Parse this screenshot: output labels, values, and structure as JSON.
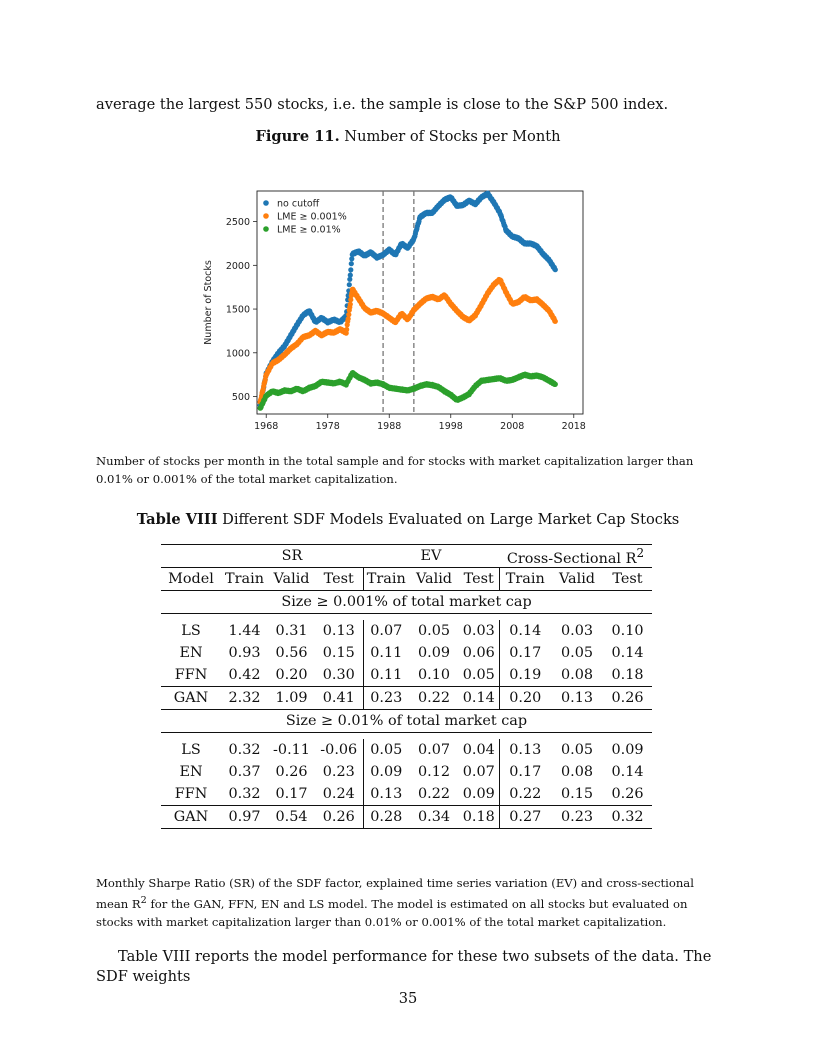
{
  "intro_text": "average the largest 550 stocks, i.e. the sample is close to the S&P 500 index.",
  "figure": {
    "label": "Figure 11.",
    "title": "Number of Stocks per Month",
    "caption": "Number of stocks per month in the total sample and for stocks with market capitalization larger than 0.01% or 0.001% of the total market capitalization."
  },
  "chart_data": {
    "type": "scatter",
    "ylabel": "Number of Stocks",
    "xlabel": "",
    "x_ticks": [
      1968,
      1978,
      1988,
      1998,
      2008,
      2018
    ],
    "y_ticks": [
      500,
      1000,
      1500,
      2000,
      2500
    ],
    "xlim": [
      1966.5,
      2019.5
    ],
    "ylim": [
      300,
      2850
    ],
    "vlines": [
      1987.0,
      1992.0
    ],
    "legend_position": "top-left",
    "series": [
      {
        "name": "no cutoff",
        "color": "#1f77b4",
        "points": [
          [
            1967,
            400
          ],
          [
            1968,
            760
          ],
          [
            1969,
            900
          ],
          [
            1970,
            1000
          ],
          [
            1971,
            1080
          ],
          [
            1972,
            1200
          ],
          [
            1973,
            1320
          ],
          [
            1974,
            1430
          ],
          [
            1975,
            1480
          ],
          [
            1976,
            1350
          ],
          [
            1977,
            1400
          ],
          [
            1978,
            1350
          ],
          [
            1979,
            1380
          ],
          [
            1980,
            1350
          ],
          [
            1981,
            1420
          ],
          [
            1982,
            2130
          ],
          [
            1983,
            2160
          ],
          [
            1984,
            2110
          ],
          [
            1985,
            2150
          ],
          [
            1986,
            2090
          ],
          [
            1987,
            2120
          ],
          [
            1988,
            2180
          ],
          [
            1989,
            2120
          ],
          [
            1990,
            2250
          ],
          [
            1991,
            2200
          ],
          [
            1992,
            2300
          ],
          [
            1993,
            2550
          ],
          [
            1994,
            2600
          ],
          [
            1995,
            2600
          ],
          [
            1996,
            2680
          ],
          [
            1997,
            2750
          ],
          [
            1998,
            2780
          ],
          [
            1999,
            2680
          ],
          [
            2000,
            2690
          ],
          [
            2001,
            2740
          ],
          [
            2002,
            2700
          ],
          [
            2003,
            2780
          ],
          [
            2004,
            2820
          ],
          [
            2005,
            2720
          ],
          [
            2006,
            2600
          ],
          [
            2007,
            2400
          ],
          [
            2008,
            2330
          ],
          [
            2009,
            2310
          ],
          [
            2010,
            2250
          ],
          [
            2011,
            2250
          ],
          [
            2012,
            2220
          ],
          [
            2013,
            2130
          ],
          [
            2014,
            2060
          ],
          [
            2015,
            1950
          ]
        ]
      },
      {
        "name": "LME  ≥ 0.001%",
        "color": "#ff7f0e",
        "points": [
          [
            1967,
            430
          ],
          [
            1968,
            750
          ],
          [
            1969,
            880
          ],
          [
            1970,
            920
          ],
          [
            1971,
            980
          ],
          [
            1972,
            1050
          ],
          [
            1973,
            1100
          ],
          [
            1974,
            1180
          ],
          [
            1975,
            1200
          ],
          [
            1976,
            1250
          ],
          [
            1977,
            1200
          ],
          [
            1978,
            1240
          ],
          [
            1979,
            1230
          ],
          [
            1980,
            1270
          ],
          [
            1981,
            1230
          ],
          [
            1982,
            1730
          ],
          [
            1983,
            1620
          ],
          [
            1984,
            1510
          ],
          [
            1985,
            1460
          ],
          [
            1986,
            1480
          ],
          [
            1987,
            1450
          ],
          [
            1988,
            1400
          ],
          [
            1989,
            1350
          ],
          [
            1990,
            1450
          ],
          [
            1991,
            1380
          ],
          [
            1992,
            1490
          ],
          [
            1993,
            1560
          ],
          [
            1994,
            1620
          ],
          [
            1995,
            1640
          ],
          [
            1996,
            1610
          ],
          [
            1997,
            1660
          ],
          [
            1998,
            1560
          ],
          [
            1999,
            1480
          ],
          [
            2000,
            1410
          ],
          [
            2001,
            1370
          ],
          [
            2002,
            1430
          ],
          [
            2003,
            1550
          ],
          [
            2004,
            1680
          ],
          [
            2005,
            1780
          ],
          [
            2006,
            1840
          ],
          [
            2007,
            1690
          ],
          [
            2008,
            1560
          ],
          [
            2009,
            1580
          ],
          [
            2010,
            1640
          ],
          [
            2011,
            1600
          ],
          [
            2012,
            1610
          ],
          [
            2013,
            1550
          ],
          [
            2014,
            1480
          ],
          [
            2015,
            1360
          ]
        ]
      },
      {
        "name": "LME  ≥ 0.01%",
        "color": "#2ca02c",
        "points": [
          [
            1967,
            360
          ],
          [
            1968,
            510
          ],
          [
            1969,
            560
          ],
          [
            1970,
            540
          ],
          [
            1971,
            570
          ],
          [
            1972,
            560
          ],
          [
            1973,
            590
          ],
          [
            1974,
            560
          ],
          [
            1975,
            600
          ],
          [
            1976,
            620
          ],
          [
            1977,
            670
          ],
          [
            1978,
            660
          ],
          [
            1979,
            650
          ],
          [
            1980,
            670
          ],
          [
            1981,
            640
          ],
          [
            1982,
            770
          ],
          [
            1983,
            720
          ],
          [
            1984,
            690
          ],
          [
            1985,
            650
          ],
          [
            1986,
            660
          ],
          [
            1987,
            640
          ],
          [
            1988,
            600
          ],
          [
            1989,
            590
          ],
          [
            1990,
            580
          ],
          [
            1991,
            570
          ],
          [
            1992,
            590
          ],
          [
            1993,
            620
          ],
          [
            1994,
            640
          ],
          [
            1995,
            630
          ],
          [
            1996,
            610
          ],
          [
            1997,
            560
          ],
          [
            1998,
            520
          ],
          [
            1999,
            460
          ],
          [
            2000,
            490
          ],
          [
            2001,
            530
          ],
          [
            2002,
            620
          ],
          [
            2003,
            680
          ],
          [
            2004,
            690
          ],
          [
            2005,
            700
          ],
          [
            2006,
            710
          ],
          [
            2007,
            680
          ],
          [
            2008,
            690
          ],
          [
            2009,
            720
          ],
          [
            2010,
            750
          ],
          [
            2011,
            730
          ],
          [
            2012,
            740
          ],
          [
            2013,
            720
          ],
          [
            2014,
            680
          ],
          [
            2015,
            640
          ]
        ]
      }
    ]
  },
  "table": {
    "label": "Table VIII",
    "title": "Different SDF Models Evaluated on Large Market Cap Stocks",
    "groups": [
      "SR",
      "EV",
      "Cross-Sectional R"
    ],
    "groups_sup": "2",
    "model_header": "Model",
    "subheaders": [
      "Train",
      "Valid",
      "Test",
      "Train",
      "Valid",
      "Test",
      "Train",
      "Valid",
      "Test"
    ],
    "panel1_title": "Size ≥ 0.001% of total market cap",
    "panel1_rows": [
      {
        "model": "LS",
        "vals": [
          "1.44",
          "0.31",
          "0.13",
          "0.07",
          "0.05",
          "0.03",
          "0.14",
          "0.03",
          "0.10"
        ]
      },
      {
        "model": "EN",
        "vals": [
          "0.93",
          "0.56",
          "0.15",
          "0.11",
          "0.09",
          "0.06",
          "0.17",
          "0.05",
          "0.14"
        ]
      },
      {
        "model": "FFN",
        "vals": [
          "0.42",
          "0.20",
          "0.30",
          "0.11",
          "0.10",
          "0.05",
          "0.19",
          "0.08",
          "0.18"
        ]
      }
    ],
    "panel1_gan": {
      "model": "GAN",
      "vals": [
        "2.32",
        "1.09",
        "0.41",
        "0.23",
        "0.22",
        "0.14",
        "0.20",
        "0.13",
        "0.26"
      ]
    },
    "panel2_title": "Size ≥ 0.01% of total market cap",
    "panel2_rows": [
      {
        "model": "LS",
        "vals": [
          "0.32",
          "-0.11",
          "-0.06",
          "0.05",
          "0.07",
          "0.04",
          "0.13",
          "0.05",
          "0.09"
        ]
      },
      {
        "model": "EN",
        "vals": [
          "0.37",
          "0.26",
          "0.23",
          "0.09",
          "0.12",
          "0.07",
          "0.17",
          "0.08",
          "0.14"
        ]
      },
      {
        "model": "FFN",
        "vals": [
          "0.32",
          "0.17",
          "0.24",
          "0.13",
          "0.22",
          "0.09",
          "0.22",
          "0.15",
          "0.26"
        ]
      }
    ],
    "panel2_gan": {
      "model": "GAN",
      "vals": [
        "0.97",
        "0.54",
        "0.26",
        "0.28",
        "0.34",
        "0.18",
        "0.27",
        "0.23",
        "0.32"
      ]
    },
    "caption_a": "Monthly Sharpe Ratio (SR) of the SDF factor, explained time series variation (EV) and cross-sectional mean R",
    "caption_sup": "2",
    "caption_b": " for the GAN, FFN, EN and LS model. The model is estimated on all stocks but evaluated on stocks with market capitalization larger than 0.01% or 0.001% of the total market capitalization."
  },
  "outro_text": "Table VIII reports the model performance for these two subsets of the data. The SDF weights",
  "page_number": "35"
}
